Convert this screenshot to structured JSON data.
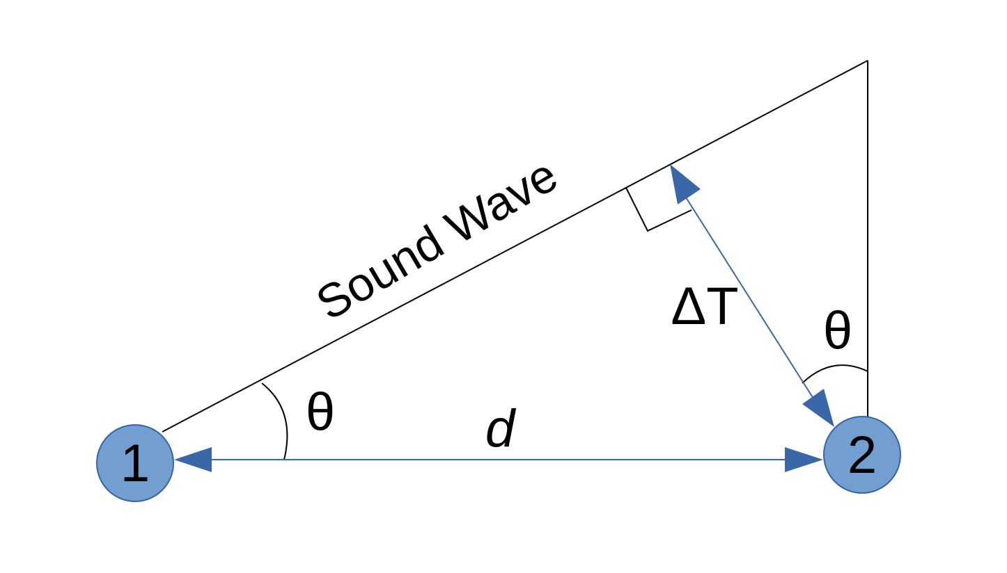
{
  "colors": {
    "arrow": "#3a67a8",
    "node_fill": "#729fcf",
    "node_stroke": "#3465a4",
    "line": "#000000"
  },
  "labels": {
    "sound_wave": "Sound Wave",
    "delta_t": "ΔT",
    "theta_left": "θ",
    "theta_right": "θ",
    "distance": "d"
  },
  "nodes": {
    "node_1": "1",
    "node_2": "2"
  }
}
